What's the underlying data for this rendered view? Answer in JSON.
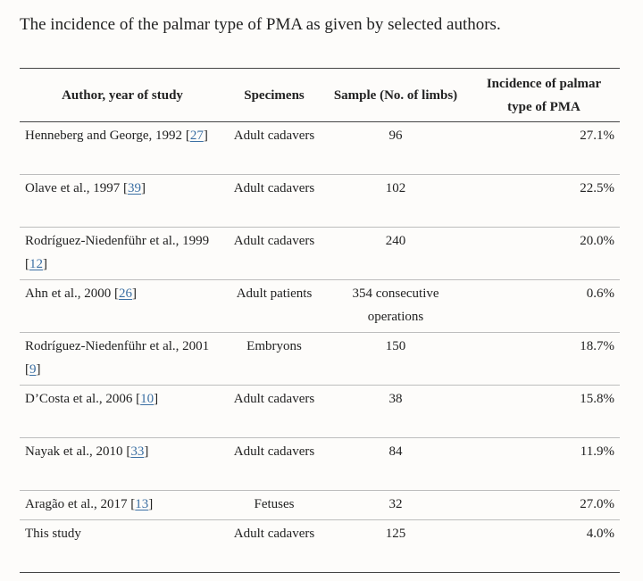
{
  "caption": "The incidence of the palmar type of PMA as given by selected authors.",
  "table": {
    "headers": {
      "author": "Author, year of study",
      "specimens": "Specimens",
      "sample": "Sample (No. of limbs)",
      "incidence": "Incidence of palmar type of PMA"
    },
    "rows": [
      {
        "author": "Henneberg and George, 1992",
        "ref": "27",
        "specimens": "Adult cadavers",
        "sample": "96",
        "incidence": "27.1%"
      },
      {
        "author": "Olave et al., 1997",
        "ref": "39",
        "specimens": "Adult cadavers",
        "sample": "102",
        "incidence": "22.5%"
      },
      {
        "author": "Rodríguez-Niedenführ et al., 1999",
        "ref": "12",
        "specimens": "Adult cadavers",
        "sample": "240",
        "incidence": "20.0%"
      },
      {
        "author": "Ahn et al., 2000",
        "ref": "26",
        "specimens": "Adult patients",
        "sample": "354 consecutive operations",
        "incidence": "0.6%"
      },
      {
        "author": "Rodríguez-Niedenführ et al., 2001",
        "ref": "9",
        "specimens": "Embryons",
        "sample": "150",
        "incidence": "18.7%"
      },
      {
        "author": "D’Costa et al., 2006",
        "ref": "10",
        "specimens": "Adult cadavers",
        "sample": "38",
        "incidence": "15.8%"
      },
      {
        "author": "Nayak et al., 2010",
        "ref": "33",
        "specimens": "Adult cadavers",
        "sample": "84",
        "incidence": "11.9%"
      },
      {
        "author": "Aragão et al., 2017",
        "ref": "13",
        "specimens": "Fetuses",
        "sample": "32",
        "incidence": "27.0%"
      },
      {
        "author": "This study",
        "ref": "",
        "specimens": "Adult cadavers",
        "sample": "125",
        "incidence": "4.0%"
      }
    ]
  }
}
